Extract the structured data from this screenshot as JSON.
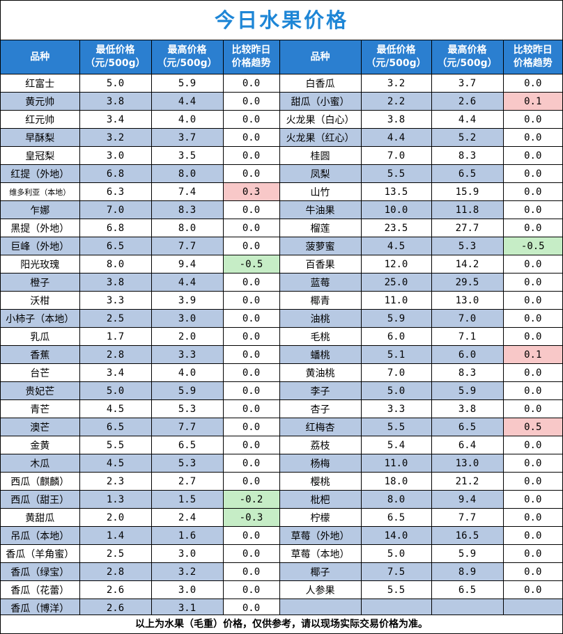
{
  "title": "今日水果价格",
  "headers": {
    "name": "品种",
    "min": "最低价格\n（元/500g）",
    "max": "最高价格\n（元/500g）",
    "trend": "比较昨日\n价格趋势"
  },
  "colors": {
    "title": "#1e86d6",
    "header_bg": "#2b7fd0",
    "stripe": "#b7c9e3",
    "up": "#f8c8c8",
    "down": "#c6edc6"
  },
  "rows": [
    {
      "left": {
        "name": "红富士",
        "min": "5.0",
        "max": "5.9",
        "trend": "0.0"
      },
      "right": {
        "name": "白香瓜",
        "min": "3.2",
        "max": "3.7",
        "trend": "0.0"
      }
    },
    {
      "left": {
        "name": "黄元帅",
        "min": "3.8",
        "max": "4.4",
        "trend": "0.0"
      },
      "right": {
        "name": "甜瓜（小蜜）",
        "min": "2.2",
        "max": "2.6",
        "trend": "0.1",
        "dir": "up"
      }
    },
    {
      "left": {
        "name": "红元帅",
        "min": "3.4",
        "max": "4.0",
        "trend": "0.0"
      },
      "right": {
        "name": "火龙果（白心）",
        "min": "3.8",
        "max": "4.4",
        "trend": "0.0"
      }
    },
    {
      "left": {
        "name": "早酥梨",
        "min": "3.2",
        "max": "3.7",
        "trend": "0.0"
      },
      "right": {
        "name": "火龙果（红心）",
        "min": "4.4",
        "max": "5.2",
        "trend": "0.0"
      }
    },
    {
      "left": {
        "name": "皇冠梨",
        "min": "3.0",
        "max": "3.5",
        "trend": "0.0"
      },
      "right": {
        "name": "桂圆",
        "min": "7.0",
        "max": "8.3",
        "trend": "0.0"
      }
    },
    {
      "left": {
        "name": "红提（外地）",
        "min": "6.8",
        "max": "8.0",
        "trend": "0.0"
      },
      "right": {
        "name": "凤梨",
        "min": "5.5",
        "max": "6.5",
        "trend": "0.0"
      }
    },
    {
      "left": {
        "name": "维多利亚（本地）",
        "min": "6.3",
        "max": "7.4",
        "trend": "0.3",
        "dir": "up",
        "small": true
      },
      "right": {
        "name": "山竹",
        "min": "13.5",
        "max": "15.9",
        "trend": "0.0"
      }
    },
    {
      "left": {
        "name": "乍娜",
        "min": "7.0",
        "max": "8.3",
        "trend": "0.0"
      },
      "right": {
        "name": "牛油果",
        "min": "10.0",
        "max": "11.8",
        "trend": "0.0"
      }
    },
    {
      "left": {
        "name": "黑提（外地）",
        "min": "6.8",
        "max": "8.0",
        "trend": "0.0"
      },
      "right": {
        "name": "榴莲",
        "min": "23.5",
        "max": "27.7",
        "trend": "0.0"
      }
    },
    {
      "left": {
        "name": "巨峰（外地）",
        "min": "6.5",
        "max": "7.7",
        "trend": "0.0"
      },
      "right": {
        "name": "菠萝蜜",
        "min": "4.5",
        "max": "5.3",
        "trend": "-0.5",
        "dir": "down"
      }
    },
    {
      "left": {
        "name": "阳光玫瑰",
        "min": "8.0",
        "max": "9.4",
        "trend": "-0.5",
        "dir": "down"
      },
      "right": {
        "name": "百香果",
        "min": "12.0",
        "max": "14.2",
        "trend": "0.0"
      }
    },
    {
      "left": {
        "name": "橙子",
        "min": "3.8",
        "max": "4.4",
        "trend": "0.0"
      },
      "right": {
        "name": "蓝莓",
        "min": "25.0",
        "max": "29.5",
        "trend": "0.0"
      }
    },
    {
      "left": {
        "name": "沃柑",
        "min": "3.3",
        "max": "3.9",
        "trend": "0.0"
      },
      "right": {
        "name": "椰青",
        "min": "11.0",
        "max": "13.0",
        "trend": "0.0"
      }
    },
    {
      "left": {
        "name": "小柿子（本地）",
        "min": "2.5",
        "max": "3.0",
        "trend": "0.0"
      },
      "right": {
        "name": "油桃",
        "min": "5.9",
        "max": "7.0",
        "trend": "0.0"
      }
    },
    {
      "left": {
        "name": "乳瓜",
        "min": "1.7",
        "max": "2.0",
        "trend": "0.0"
      },
      "right": {
        "name": "毛桃",
        "min": "6.0",
        "max": "7.1",
        "trend": "0.0"
      }
    },
    {
      "left": {
        "name": "香蕉",
        "min": "2.8",
        "max": "3.3",
        "trend": "0.0"
      },
      "right": {
        "name": "蟠桃",
        "min": "5.1",
        "max": "6.0",
        "trend": "0.1",
        "dir": "up"
      }
    },
    {
      "left": {
        "name": "台芒",
        "min": "3.4",
        "max": "4.0",
        "trend": "0.0"
      },
      "right": {
        "name": "黄油桃",
        "min": "7.0",
        "max": "8.3",
        "trend": "0.0"
      }
    },
    {
      "left": {
        "name": "贵妃芒",
        "min": "5.0",
        "max": "5.9",
        "trend": "0.0"
      },
      "right": {
        "name": "李子",
        "min": "5.0",
        "max": "5.9",
        "trend": "0.0"
      }
    },
    {
      "left": {
        "name": "青芒",
        "min": "4.5",
        "max": "5.3",
        "trend": "0.0"
      },
      "right": {
        "name": "杏子",
        "min": "3.3",
        "max": "3.8",
        "trend": "0.0"
      }
    },
    {
      "left": {
        "name": "澳芒",
        "min": "6.5",
        "max": "7.7",
        "trend": "0.0"
      },
      "right": {
        "name": "红梅杏",
        "min": "5.5",
        "max": "6.5",
        "trend": "0.5",
        "dir": "up"
      }
    },
    {
      "left": {
        "name": "金黄",
        "min": "5.5",
        "max": "6.5",
        "trend": "0.0"
      },
      "right": {
        "name": "荔枝",
        "min": "5.4",
        "max": "6.4",
        "trend": "0.0"
      }
    },
    {
      "left": {
        "name": "木瓜",
        "min": "4.5",
        "max": "5.3",
        "trend": "0.0"
      },
      "right": {
        "name": "杨梅",
        "min": "11.0",
        "max": "13.0",
        "trend": "0.0"
      }
    },
    {
      "left": {
        "name": "西瓜（麒麟）",
        "min": "2.3",
        "max": "2.7",
        "trend": "0.0"
      },
      "right": {
        "name": "樱桃",
        "min": "18.0",
        "max": "21.2",
        "trend": "0.0"
      }
    },
    {
      "left": {
        "name": "西瓜（甜王）",
        "min": "1.3",
        "max": "1.5",
        "trend": "-0.2",
        "dir": "down"
      },
      "right": {
        "name": "枇杷",
        "min": "8.0",
        "max": "9.4",
        "trend": "0.0"
      }
    },
    {
      "left": {
        "name": "黄甜瓜",
        "min": "2.0",
        "max": "2.4",
        "trend": "-0.3",
        "dir": "down"
      },
      "right": {
        "name": "柠檬",
        "min": "6.5",
        "max": "7.7",
        "trend": "0.0"
      }
    },
    {
      "left": {
        "name": "吊瓜（本地）",
        "min": "1.4",
        "max": "1.6",
        "trend": "0.0"
      },
      "right": {
        "name": "草莓（外地）",
        "min": "14.0",
        "max": "16.5",
        "trend": "0.0"
      }
    },
    {
      "left": {
        "name": "香瓜（羊角蜜）",
        "min": "2.5",
        "max": "3.0",
        "trend": "0.0"
      },
      "right": {
        "name": "草莓（本地）",
        "min": "5.0",
        "max": "5.9",
        "trend": "0.0"
      }
    },
    {
      "left": {
        "name": "香瓜（绿宝）",
        "min": "2.8",
        "max": "3.2",
        "trend": "0.0"
      },
      "right": {
        "name": "椰子",
        "min": "7.5",
        "max": "8.9",
        "trend": "0.0"
      }
    },
    {
      "left": {
        "name": "香瓜（花蕾）",
        "min": "2.6",
        "max": "3.0",
        "trend": "0.0"
      },
      "right": {
        "name": "人参果",
        "min": "5.5",
        "max": "6.5",
        "trend": "0.0"
      }
    },
    {
      "left": {
        "name": "香瓜（博洋）",
        "min": "2.6",
        "max": "3.1",
        "trend": "0.0"
      },
      "right": null
    }
  ],
  "footer": "以上为水果（毛重）价格，仅供参考，请以现场实际交易价格为准。"
}
